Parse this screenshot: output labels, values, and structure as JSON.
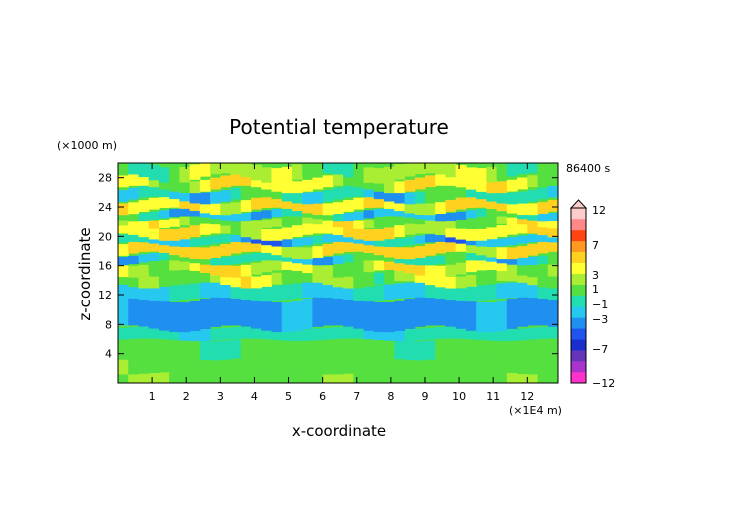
{
  "chart_data": {
    "type": "heatmap",
    "title": "Potential temperature",
    "xlabel": "x-coordinate",
    "ylabel": "z-coordinate",
    "x_unit": "(×1E4 m)",
    "y_unit": "(×1000 m)",
    "time_label": "86400 s",
    "xlim": [
      0,
      12.9
    ],
    "ylim": [
      0,
      30
    ],
    "x_ticks": [
      1,
      2,
      3,
      4,
      5,
      6,
      7,
      8,
      9,
      10,
      11,
      12
    ],
    "y_ticks": [
      4,
      8,
      12,
      16,
      20,
      24,
      28
    ],
    "colorbar": {
      "label_values": [
        "12",
        "7",
        "3",
        "1",
        "−1",
        "−3",
        "−7",
        "−12"
      ],
      "levels": [
        -12,
        -9,
        -7,
        -5,
        -4,
        -3,
        -2,
        -1,
        0,
        1,
        2,
        3,
        5,
        7,
        9,
        12
      ],
      "colors": [
        "#ff33cc",
        "#aa33cc",
        "#6633bb",
        "#1a2fcc",
        "#1f55ee",
        "#1f8ff0",
        "#27c8f0",
        "#22ddb0",
        "#55e040",
        "#aaee33",
        "#ffff33",
        "#ffd21f",
        "#ff9922",
        "#ff4411",
        "#ff8888",
        "#ffcccc"
      ]
    },
    "layers": [
      {
        "z": [
          0,
          1.5
        ],
        "value": 0.7
      },
      {
        "z": [
          1.5,
          3.5
        ],
        "value": 0.6
      },
      {
        "z": [
          3.5,
          6
        ],
        "value": 0.3
      },
      {
        "z": [
          6,
          7.5
        ],
        "value": -0.7
      },
      {
        "z": [
          7.5,
          11.5
        ],
        "value": -2.4
      },
      {
        "z": [
          11.5,
          13.5
        ],
        "value": -0.9
      },
      {
        "z": [
          13.5,
          15
        ],
        "value": 1.3
      },
      {
        "z": [
          15,
          16.5
        ],
        "value": 2.1
      },
      {
        "z": [
          16.5,
          17.5
        ],
        "value": -0.6
      },
      {
        "z": [
          17.5,
          19
        ],
        "value": 3.2
      },
      {
        "z": [
          19,
          20
        ],
        "value": -1.6
      },
      {
        "z": [
          20,
          21.5
        ],
        "value": 2.6
      },
      {
        "z": [
          21.5,
          22.5
        ],
        "value": 1.4
      },
      {
        "z": [
          22.5,
          23.5
        ],
        "value": -1.2
      },
      {
        "z": [
          23.5,
          25
        ],
        "value": 3.1
      },
      {
        "z": [
          25,
          26.5
        ],
        "value": -0.8
      },
      {
        "z": [
          26.5,
          28
        ],
        "value": 2.2
      },
      {
        "z": [
          28,
          30
        ],
        "value": 1.1
      }
    ]
  }
}
